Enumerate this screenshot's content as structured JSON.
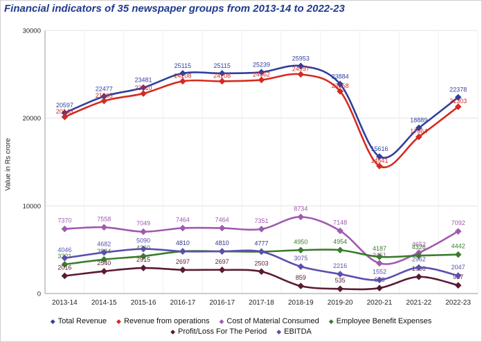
{
  "title": "Financial indicators of 35 newspaper groups from 2013-14 to 2022-23",
  "chart_data": {
    "type": "line",
    "title": "Financial indicators of 35 newspaper groups from 2013-14 to 2022-23",
    "xlabel": "",
    "ylabel": "Value in Rs crore",
    "ylim": [
      0,
      30000
    ],
    "yticks": [
      "0",
      "10000",
      "20000",
      "30000"
    ],
    "grid": true,
    "legend_position": "bottom",
    "categories": [
      "2013-14",
      "2014-15",
      "2015-16",
      "2016-17",
      "2016-17",
      "2017-18",
      "2018-19",
      "2019-20",
      "2020-21",
      "2021-22",
      "2022-23"
    ],
    "series": [
      {
        "name": "Total Revenue",
        "color": "#2f3f9e",
        "values": [
          20597,
          22477,
          23481,
          25115,
          25115,
          25239,
          25953,
          23884,
          15616,
          18889,
          22378
        ]
      },
      {
        "name": "Revenue from operations",
        "color": "#d42a1f",
        "values": [
          20143,
          21965,
          22810,
          24208,
          24208,
          24362,
          24997,
          23058,
          14541,
          17864,
          21303
        ]
      },
      {
        "name": "Cost of Material Consumed",
        "color": "#a05ab0",
        "values": [
          7370,
          7558,
          7049,
          7464,
          7464,
          7351,
          8734,
          7148,
          3451,
          4652,
          7092
        ]
      },
      {
        "name": "Employee Benefit Expenses",
        "color": "#3a7d2c",
        "values": [
          3321,
          3884,
          4260,
          4810,
          4810,
          4777,
          4950,
          4954,
          4187,
          4326,
          4442
        ]
      },
      {
        "name": "Profit/Loss For The Period",
        "color": "#5a1a34",
        "values": [
          2016,
          2540,
          2915,
          2697,
          2697,
          2503,
          859,
          535,
          626,
          1906,
          937
        ]
      },
      {
        "name": "EBITDA",
        "color": "#5b4fae",
        "values": [
          4046,
          4682,
          5090,
          4810,
          4810,
          4777,
          3075,
          2216,
          1552,
          2962,
          2047
        ]
      }
    ]
  }
}
